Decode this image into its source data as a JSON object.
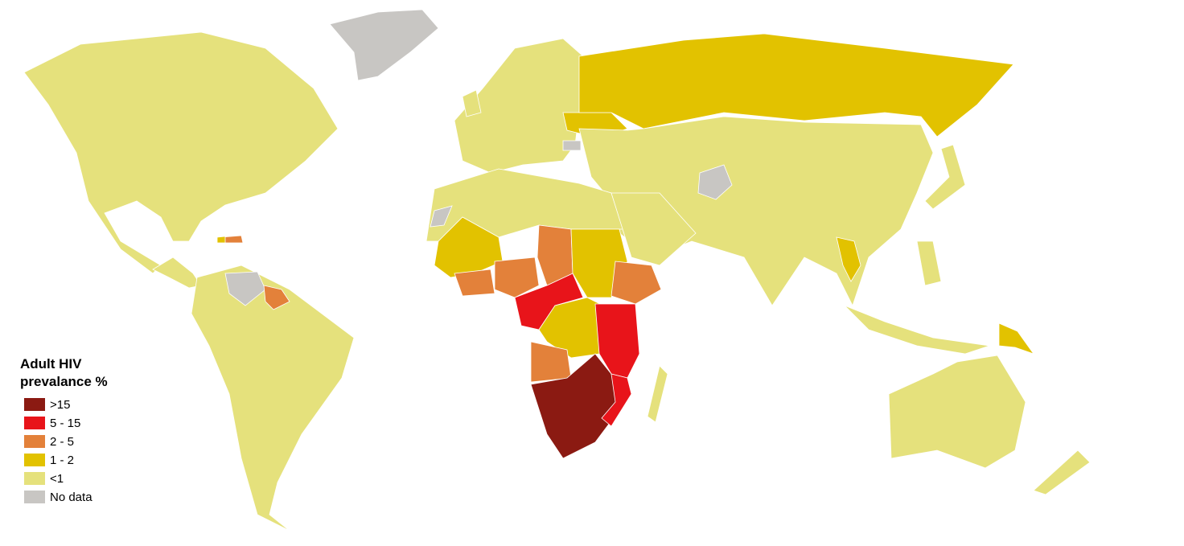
{
  "legend": {
    "title_lines": [
      "Adult HIV",
      "prevalance %"
    ],
    "items": [
      {
        "label": ">15",
        "color": "#8b1a12"
      },
      {
        "label": "5 - 15",
        "color": "#e8141a"
      },
      {
        "label": "2 - 5",
        "color": "#e3813a"
      },
      {
        "label": "1 - 2",
        "color": "#e2c200"
      },
      {
        "label": "<1",
        "color": "#e5e17c"
      },
      {
        "label": "No data",
        "color": "#c8c6c3"
      }
    ]
  }
}
